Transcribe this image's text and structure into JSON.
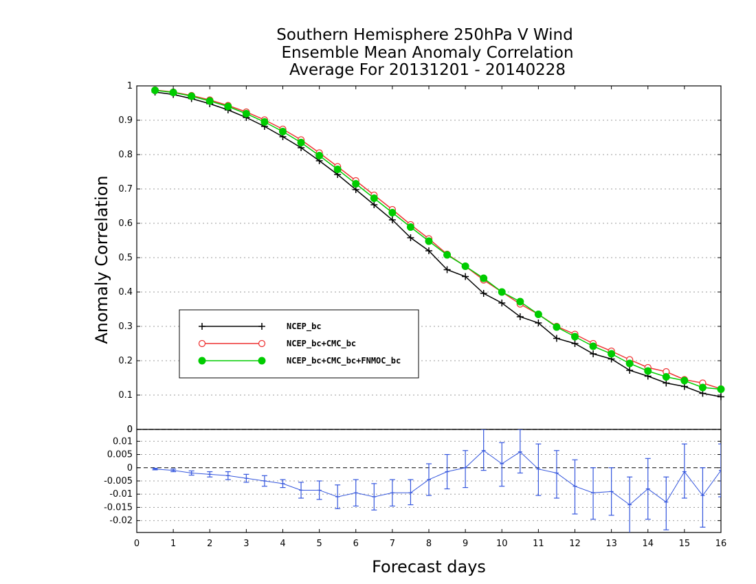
{
  "chart_data": [
    {
      "type": "line",
      "title": [
        "Southern Hemisphere 250hPa V Wind",
        "Ensemble Mean Anomaly Correlation",
        "Average For 20131201 - 20140228"
      ],
      "xlabel": "Forecast days",
      "ylabel": "Anomaly Correlation",
      "xlim": [
        0,
        16
      ],
      "ylim": [
        0,
        1
      ],
      "x_ticks": [
        "0",
        "1",
        "2",
        "3",
        "4",
        "5",
        "6",
        "7",
        "8",
        "9",
        "10",
        "11",
        "12",
        "13",
        "14",
        "15",
        "16"
      ],
      "y_ticks": [
        "0",
        "0.1",
        "0.2",
        "0.3",
        "0.4",
        "0.5",
        "0.6",
        "0.7",
        "0.8",
        "0.9",
        "1"
      ],
      "grid": true,
      "legend_position": "left",
      "x": [
        0.5,
        1,
        1.5,
        2,
        2.5,
        3,
        3.5,
        4,
        4.5,
        5,
        5.5,
        6,
        6.5,
        7,
        7.5,
        8,
        8.5,
        9,
        9.5,
        10,
        10.5,
        11,
        11.5,
        12,
        12.5,
        13,
        13.5,
        14,
        14.5,
        15,
        15.5,
        16
      ],
      "series": [
        {
          "name": "NCEP_bc",
          "color": "#000000",
          "marker": "plus",
          "values": [
            0.982,
            0.975,
            0.963,
            0.948,
            0.93,
            0.908,
            0.882,
            0.852,
            0.82,
            0.782,
            0.742,
            0.698,
            0.654,
            0.61,
            0.558,
            0.52,
            0.465,
            0.445,
            0.396,
            0.368,
            0.328,
            0.31,
            0.265,
            0.25,
            0.22,
            0.205,
            0.172,
            0.155,
            0.135,
            0.125,
            0.105,
            0.095
          ]
        },
        {
          "name": "NCEP_bc+CMC_bc",
          "color": "#ee3333",
          "marker": "open-circle",
          "values": [
            0.988,
            0.982,
            0.972,
            0.959,
            0.943,
            0.924,
            0.901,
            0.874,
            0.843,
            0.805,
            0.765,
            0.724,
            0.682,
            0.64,
            0.596,
            0.555,
            0.51,
            0.475,
            0.435,
            0.4,
            0.365,
            0.335,
            0.3,
            0.277,
            0.25,
            0.228,
            0.203,
            0.18,
            0.168,
            0.145,
            0.135,
            0.118
          ]
        },
        {
          "name": "NCEP_bc+CMC_bc+FNMOC_bc",
          "color": "#00cc00",
          "marker": "filled-circle",
          "values": [
            0.987,
            0.981,
            0.97,
            0.956,
            0.94,
            0.919,
            0.895,
            0.867,
            0.835,
            0.797,
            0.757,
            0.715,
            0.673,
            0.631,
            0.589,
            0.548,
            0.508,
            0.475,
            0.44,
            0.4,
            0.372,
            0.335,
            0.298,
            0.27,
            0.242,
            0.22,
            0.192,
            0.17,
            0.153,
            0.142,
            0.122,
            0.117
          ]
        }
      ]
    },
    {
      "type": "line",
      "subtype": "errorbar",
      "xlim": [
        0,
        16
      ],
      "ylim": [
        -0.0245,
        0.0145
      ],
      "x_ticks": [
        "0",
        "1",
        "2",
        "3",
        "4",
        "5",
        "6",
        "7",
        "8",
        "9",
        "10",
        "11",
        "12",
        "13",
        "14",
        "15",
        "16"
      ],
      "y_ticks": [
        "0.01",
        "0.005",
        "0",
        "-0.005",
        "-0.01",
        "-0.015",
        "-0.02"
      ],
      "grid": true,
      "zero_line": true,
      "top_label": "0",
      "series": [
        {
          "color": "#3355dd",
          "x": [
            0.5,
            1,
            1.5,
            2,
            2.5,
            3,
            3.5,
            4,
            4.5,
            5,
            5.5,
            6,
            6.5,
            7,
            7.5,
            8,
            8.5,
            9,
            9.5,
            10,
            10.5,
            11,
            11.5,
            12,
            12.5,
            13,
            13.5,
            14,
            14.5,
            15,
            15.5,
            16
          ],
          "values": [
            -0.0005,
            -0.001,
            -0.002,
            -0.0025,
            -0.003,
            -0.004,
            -0.005,
            -0.006,
            -0.0085,
            -0.0085,
            -0.011,
            -0.0095,
            -0.011,
            -0.0095,
            -0.0095,
            -0.0045,
            -0.0015,
            0.0,
            0.0065,
            0.0015,
            0.006,
            -0.0005,
            -0.002,
            -0.007,
            -0.0095,
            -0.009,
            -0.014,
            -0.008,
            -0.013,
            -0.0015,
            -0.0105,
            -0.001
          ],
          "lower": [
            -0.0008,
            -0.0015,
            -0.0028,
            -0.0035,
            -0.0045,
            -0.0055,
            -0.007,
            -0.0075,
            -0.0115,
            -0.012,
            -0.0155,
            -0.0145,
            -0.016,
            -0.0145,
            -0.014,
            -0.0105,
            -0.008,
            -0.0075,
            -0.001,
            -0.007,
            -0.002,
            -0.0105,
            -0.0115,
            -0.0175,
            -0.0195,
            -0.018,
            -0.025,
            -0.0195,
            -0.0235,
            -0.0115,
            -0.0225,
            -0.011
          ],
          "upper": [
            -0.0002,
            -0.0005,
            -0.0012,
            -0.0015,
            -0.0015,
            -0.0025,
            -0.003,
            -0.0045,
            -0.0055,
            -0.005,
            -0.0065,
            -0.0045,
            -0.006,
            -0.0045,
            -0.0045,
            0.0015,
            0.005,
            0.0065,
            0.0145,
            0.0095,
            0.0145,
            0.009,
            0.0065,
            0.003,
            0.0,
            0.0,
            -0.0035,
            0.0035,
            -0.0035,
            0.009,
            0.0,
            0.009
          ]
        }
      ]
    }
  ]
}
